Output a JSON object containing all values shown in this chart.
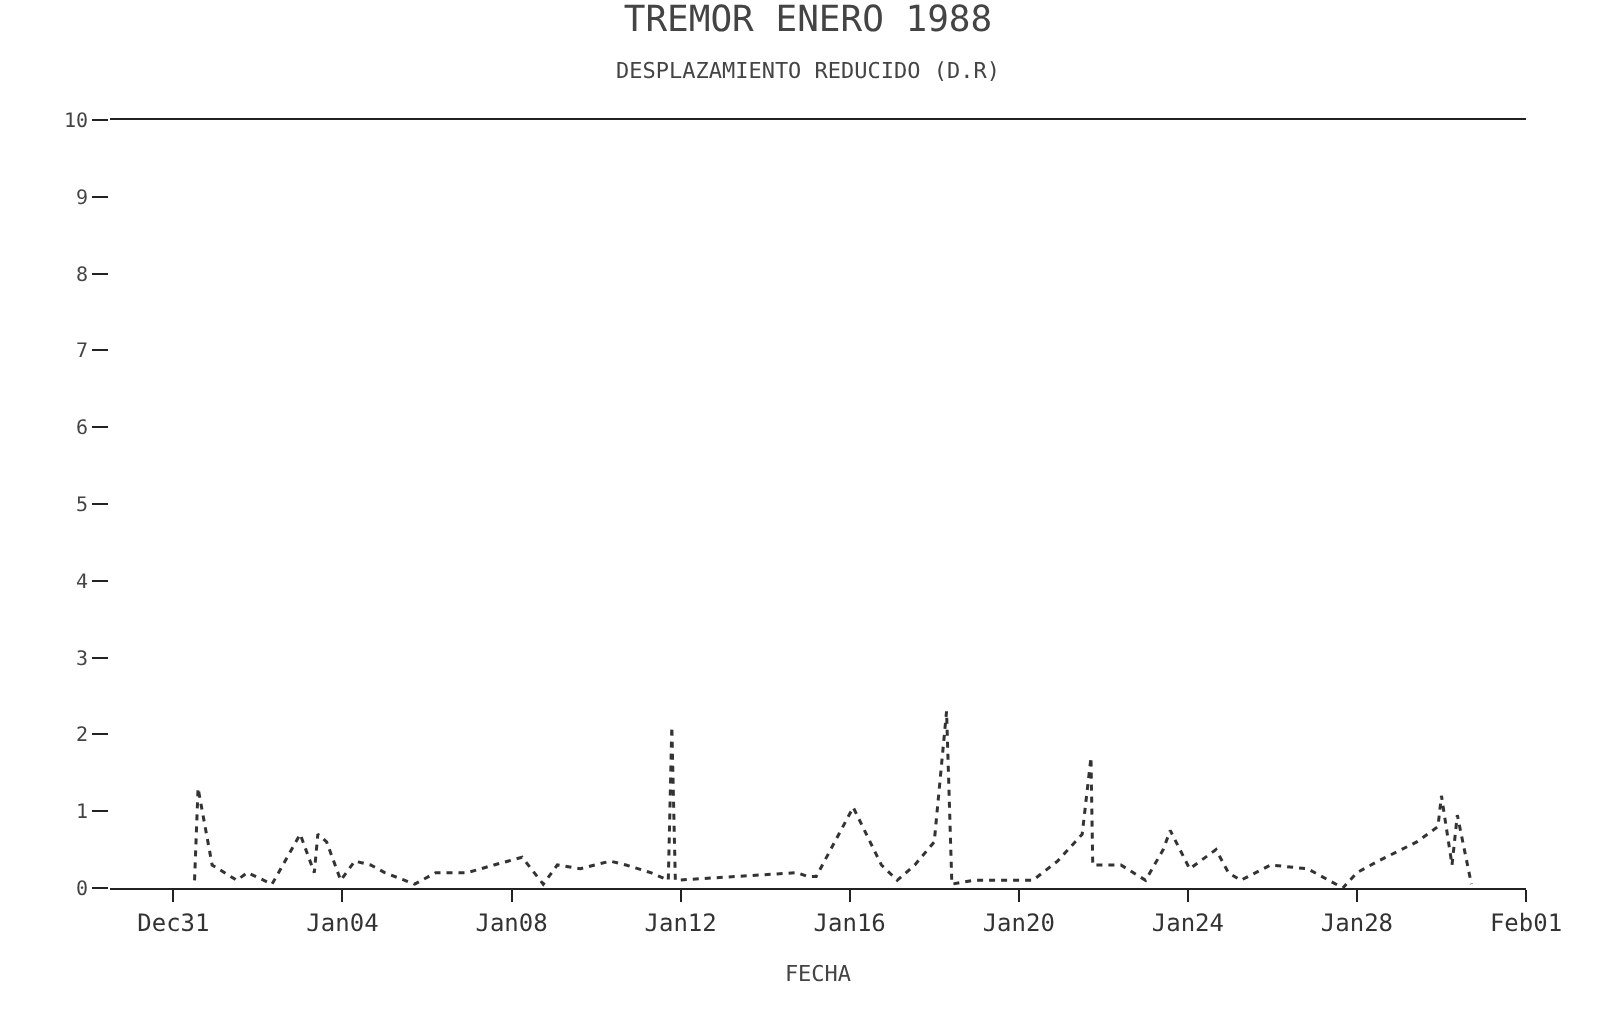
{
  "chart_data": {
    "type": "line",
    "title": "TREMOR ENERO 1988",
    "subtitle": "DESPLAZAMIENTO REDUCIDO (D.R)",
    "xlabel": "FECHA",
    "x": [
      "1987-12-31T12:00",
      "1987-12-31T14:00",
      "1987-12-31T22:00",
      "1988-01-01T12:00",
      "1988-01-01T18:00",
      "1988-01-02T08:00",
      "1988-01-03T00:00",
      "1988-01-03T08:00",
      "1988-01-03T10:00",
      "1988-01-03T15:00",
      "1988-01-03T23:00",
      "1988-01-04T07:00",
      "1988-01-04T16:00",
      "1988-01-05T00:00",
      "1988-01-05T17:00",
      "1988-01-06T05:00",
      "1988-01-06T23:00",
      "1988-01-07T14:00",
      "1988-01-08T06:00",
      "1988-01-08T18:00",
      "1988-01-09T02:00",
      "1988-01-09T15:00",
      "1988-01-10T08:00",
      "1988-01-10T17:00",
      "1988-01-11T07:00",
      "1988-01-11T17:00",
      "1988-01-11T19:00",
      "1988-01-11T21:00",
      "1988-01-14T18:00",
      "1988-01-15T00:00",
      "1988-01-15T05:00",
      "1988-01-16T02:00",
      "1988-01-16T18:00",
      "1988-01-17T03:00",
      "1988-01-17T13:00",
      "1988-01-18T00:00",
      "1988-01-18T07:00",
      "1988-01-18T10:00",
      "1988-01-18T22:00",
      "1988-01-19T13:00",
      "1988-01-20T08:00",
      "1988-01-20T22:00",
      "1988-01-21T06:00",
      "1988-01-21T12:00",
      "1988-01-21T17:00",
      "1988-01-21T18:00",
      "1988-01-22T10:00",
      "1988-01-23T00:00",
      "1988-01-23T10:00",
      "1988-01-23T14:00",
      "1988-01-24T01:00",
      "1988-01-24T16:00",
      "1988-01-24T23:00",
      "1988-01-25T06:00",
      "1988-01-25T23:00",
      "1988-01-26T20:00",
      "1988-01-27T16:00",
      "1988-01-28T00:00",
      "1988-01-28T12:00",
      "1988-01-29T10:00",
      "1988-01-29T22:00",
      "1988-01-30T00:00",
      "1988-01-30T06:00",
      "1988-01-30T09:00",
      "1988-01-30T17:00"
    ],
    "series": [
      {
        "color": "#333333",
        "values": [
          0.1,
          1.3,
          0.3,
          0.1,
          0.2,
          0.05,
          0.7,
          0.2,
          0.7,
          0.6,
          0.1,
          0.35,
          0.3,
          0.2,
          0.05,
          0.2,
          0.2,
          0.3,
          0.4,
          0.05,
          0.3,
          0.25,
          0.35,
          0.3,
          0.2,
          0.1,
          2.1,
          0.1,
          0.2,
          0.15,
          0.15,
          1.05,
          0.3,
          0.1,
          0.3,
          0.6,
          2.3,
          0.05,
          0.1,
          0.1,
          0.1,
          0.35,
          0.55,
          0.7,
          1.7,
          0.3,
          0.3,
          0.1,
          0.5,
          0.75,
          0.25,
          0.5,
          0.2,
          0.1,
          0.3,
          0.25,
          0.0,
          0.2,
          0.35,
          0.6,
          0.8,
          1.2,
          0.3,
          0.95,
          0.05
        ]
      }
    ],
    "xlim": [
      "1987-12-29T12:00",
      "1988-02-01"
    ],
    "xticks": [
      {
        "value": "1987-12-31",
        "label": "Dec31"
      },
      {
        "value": "1988-01-04",
        "label": "Jan04"
      },
      {
        "value": "1988-01-08",
        "label": "Jan08"
      },
      {
        "value": "1988-01-12",
        "label": "Jan12"
      },
      {
        "value": "1988-01-16",
        "label": "Jan16"
      },
      {
        "value": "1988-01-20",
        "label": "Jan20"
      },
      {
        "value": "1988-01-24",
        "label": "Jan24"
      },
      {
        "value": "1988-01-28",
        "label": "Jan28"
      },
      {
        "value": "1988-02-01",
        "label": "Feb01"
      }
    ],
    "ylim": [
      0,
      10
    ],
    "yticks": [
      0,
      1,
      2,
      3,
      4,
      5,
      6,
      7,
      8,
      9,
      10
    ],
    "marker": "none",
    "line_style": "dotted"
  }
}
